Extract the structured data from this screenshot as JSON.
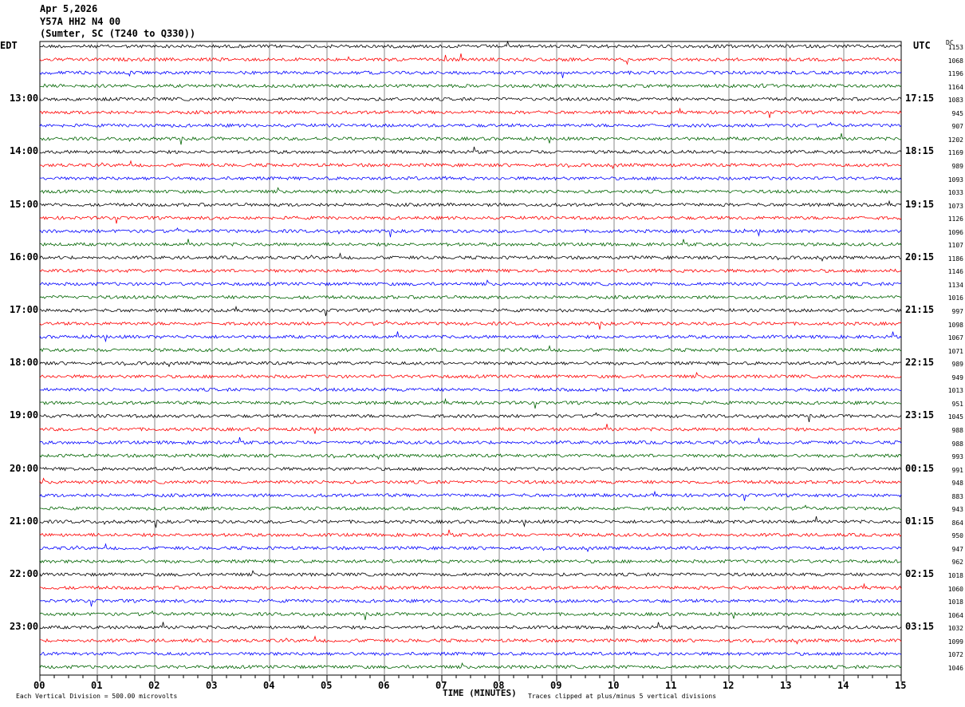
{
  "header": {
    "date": "Apr 5,2026",
    "station": "Y57A HH2 N4 00",
    "location": "(Sumter, SC (T240 to Q330))"
  },
  "left_tz": "EDT",
  "right_tz": "UTC",
  "dc_label": "DC",
  "chart_data": {
    "type": "line",
    "xlabel": "TIME (MINUTES)",
    "xlim": [
      0,
      15
    ],
    "x_ticks": [
      "00",
      "01",
      "02",
      "03",
      "04",
      "05",
      "06",
      "07",
      "08",
      "09",
      "10",
      "11",
      "12",
      "13",
      "14",
      "15"
    ],
    "left_hour_labels": [
      "13:00",
      "14:00",
      "15:00",
      "16:00",
      "17:00",
      "18:00",
      "19:00",
      "20:00",
      "21:00",
      "22:00",
      "23:00"
    ],
    "right_hour_labels": [
      "17:15",
      "18:15",
      "19:15",
      "20:15",
      "21:15",
      "22:15",
      "23:15",
      "00:15",
      "01:15",
      "02:15",
      "03:15"
    ],
    "trace_colors": [
      "#000000",
      "#ff0000",
      "#0000ff",
      "#006400"
    ],
    "trace_count": 48,
    "dc_offsets": [
      "1153",
      "1068",
      "1196",
      "1164",
      "1083",
      "945",
      "907",
      "1202",
      "1169",
      "989",
      "1093",
      "1033",
      "1073",
      "1126",
      "1096",
      "1107",
      "1186",
      "1146",
      "1134",
      "1016",
      "997",
      "1098",
      "1067",
      "1071",
      "989",
      "949",
      "1013",
      "951",
      "1045",
      "988",
      "988",
      "993",
      "991",
      "948",
      "883",
      "943",
      "864",
      "950",
      "947",
      "962",
      "1018",
      "1060",
      "1018",
      "1064",
      "1032",
      "1099",
      "1072",
      "1046"
    ],
    "grid": true
  },
  "footer": {
    "scale": "Each Vertical Division =  500.00 microvolts",
    "clip": "Traces clipped at plus/minus 5 vertical divisions"
  }
}
